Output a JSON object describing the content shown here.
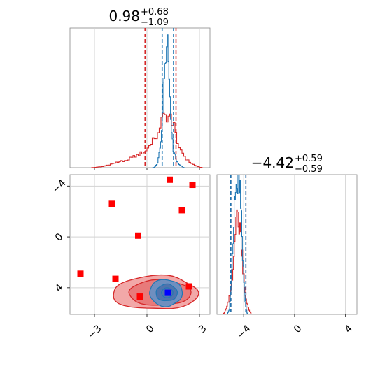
{
  "colors": {
    "blue": "#1f77b4",
    "red": "#d62728",
    "marker_red": "#ff0000",
    "marker_blue": "#0000ff",
    "grid": "#d3d3d3",
    "red_fill_outer": "#f2a8a8",
    "red_fill_inner": "#e87a7a",
    "blue_fill_outer": "#6f8fbf",
    "blue_fill_inner": "#4f73ad"
  },
  "titles": {
    "p1": {
      "value": "0.98",
      "plus": "+0.68",
      "minus": "−1.09"
    },
    "p2": {
      "value": "−4.42",
      "plus": "+0.59",
      "minus": "−0.59"
    }
  },
  "ticks": {
    "x1": [
      "−3",
      "0",
      "3"
    ],
    "y2": [
      "4",
      "0",
      "−4"
    ],
    "x2": [
      "−4",
      "0",
      "4"
    ]
  },
  "chart_data": {
    "type": "corner",
    "parameters": [
      "p1",
      "p2"
    ],
    "p1_range": [
      -4.4,
      3.6
    ],
    "p2_range": [
      -6.1,
      4.9
    ],
    "p1_ticks": [
      -3,
      0,
      3
    ],
    "p2_ticks": [
      -4,
      0,
      4
    ],
    "grid": true,
    "p1_quantile_lines": {
      "blue": [
        0.87,
        1.52
      ],
      "red": [
        -0.11,
        1.66
      ]
    },
    "p2_quantile_lines": {
      "blue": [
        -5.01,
        -3.83
      ],
      "red": [
        -5.01,
        -3.83
      ]
    },
    "p1_hist_blue": {
      "x": [
        0.4,
        0.6,
        0.8,
        0.9,
        1.0,
        1.1,
        1.2,
        1.3,
        1.4,
        1.5,
        1.7,
        1.9,
        2.1
      ],
      "y": [
        0,
        0.03,
        0.2,
        0.5,
        0.8,
        1.0,
        0.92,
        0.62,
        0.35,
        0.15,
        0.05,
        0.02,
        0
      ]
    },
    "p1_hist_red": {
      "x": [
        -3.1,
        -2.5,
        -2.0,
        -1.5,
        -1.0,
        -0.5,
        0.0,
        0.3,
        0.6,
        0.8,
        1.0,
        1.2,
        1.4,
        1.6,
        1.8,
        2.0,
        2.3,
        2.7,
        3.1
      ],
      "y": [
        0,
        0.01,
        0.03,
        0.05,
        0.07,
        0.1,
        0.14,
        0.2,
        0.28,
        0.36,
        0.4,
        0.42,
        0.38,
        0.3,
        0.2,
        0.12,
        0.06,
        0.02,
        0
      ]
    },
    "p2_hist_blue": {
      "x": [
        -5.3,
        -5.1,
        -5.0,
        -4.9,
        -4.8,
        -4.7,
        -4.6,
        -4.5,
        -4.4,
        -4.3,
        -4.2,
        -4.1,
        -4.0,
        -3.9,
        -3.7
      ],
      "y": [
        0,
        0.05,
        0.2,
        0.4,
        0.65,
        0.85,
        0.92,
        0.98,
        1.0,
        0.95,
        0.8,
        0.55,
        0.3,
        0.1,
        0
      ]
    },
    "p2_hist_red": {
      "x": [
        -5.6,
        -5.4,
        -5.2,
        -5.0,
        -4.9,
        -4.8,
        -4.7,
        -4.6,
        -4.5,
        -4.4,
        -4.3,
        -4.2,
        -4.1,
        -4.0,
        -3.9,
        -3.8,
        -3.6,
        -3.4
      ],
      "y": [
        0,
        0.04,
        0.1,
        0.18,
        0.28,
        0.45,
        0.58,
        0.68,
        0.72,
        0.7,
        0.66,
        0.55,
        0.42,
        0.3,
        0.18,
        0.1,
        0.04,
        0
      ]
    },
    "red_markers": [
      {
        "p1": -3.8,
        "p2": -2.9
      },
      {
        "p1": -2.0,
        "p2": 2.6
      },
      {
        "p1": -1.8,
        "p2": -3.3
      },
      {
        "p1": -0.5,
        "p2": 0.1
      },
      {
        "p1": -0.4,
        "p2": -4.7
      },
      {
        "p1": 1.3,
        "p2": 4.5
      },
      {
        "p1": 2.0,
        "p2": 2.1
      },
      {
        "p1": 2.4,
        "p2": -3.9
      },
      {
        "p1": 2.6,
        "p2": 4.1
      }
    ],
    "blue_marker": {
      "p1": 1.2,
      "p2": -4.4
    },
    "red_density_center": {
      "p1": 0.8,
      "p2": -4.4
    },
    "blue_density_center": {
      "p1": 1.2,
      "p2": -4.4
    }
  }
}
